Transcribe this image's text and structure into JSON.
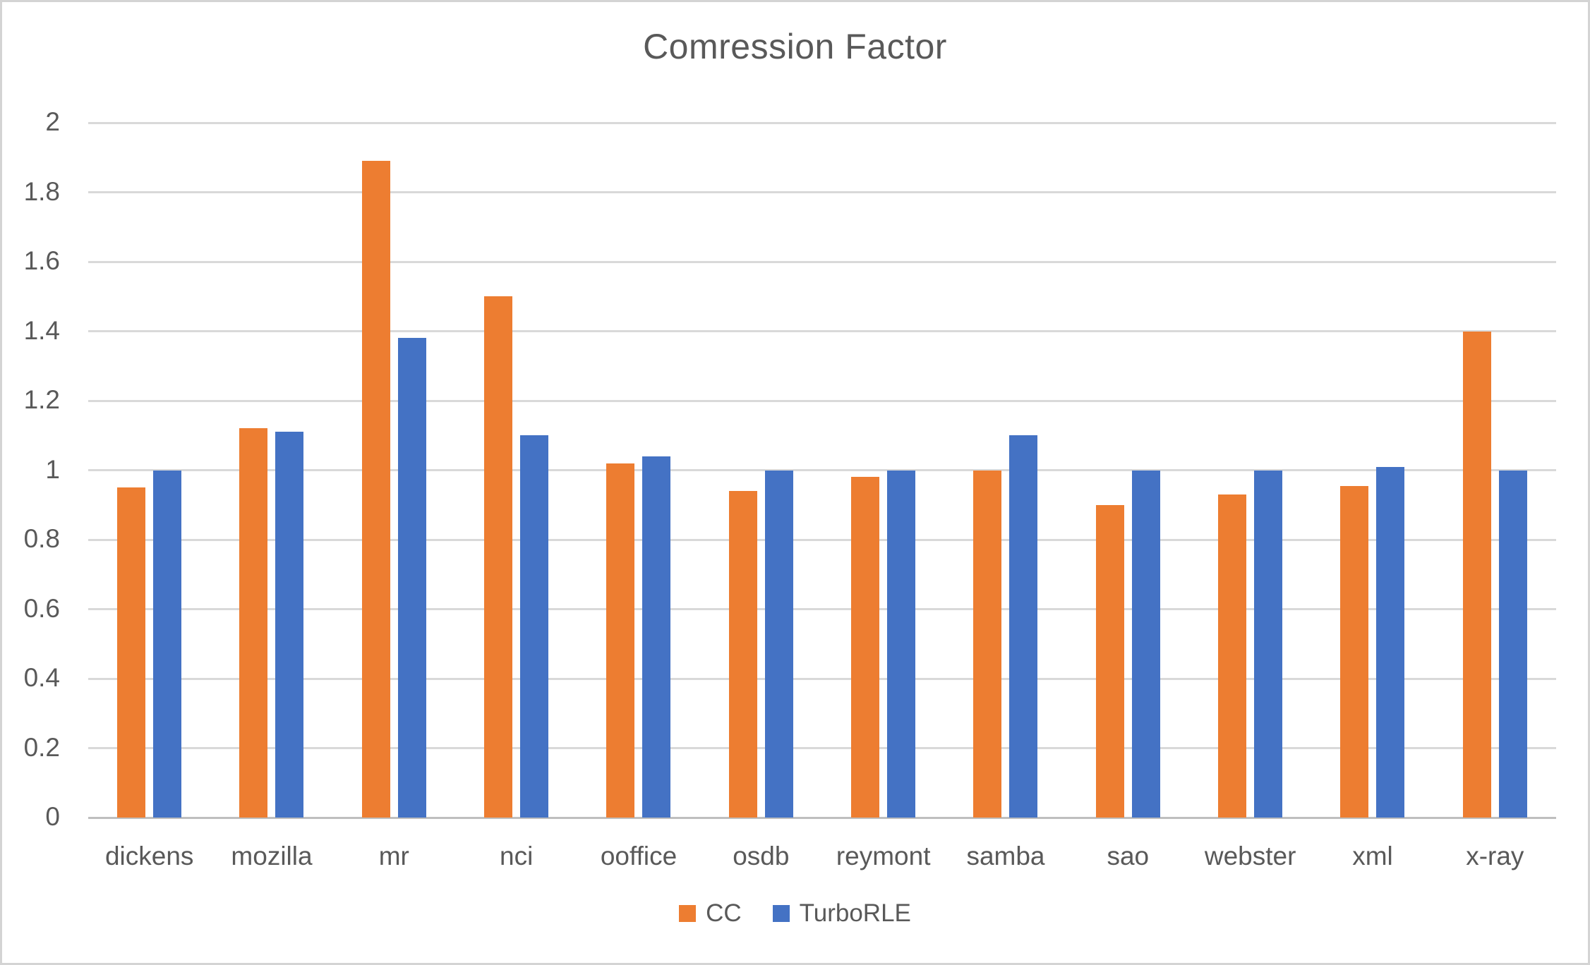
{
  "window": {
    "background": "#ffffff",
    "border_color": "#d4d4d4",
    "text_color": "#595959"
  },
  "chart_data": {
    "type": "bar",
    "title": "Comression Factor",
    "xlabel": "",
    "ylabel": "",
    "categories": [
      "dickens",
      "mozilla",
      "mr",
      "nci",
      "ooffice",
      "osdb",
      "reymont",
      "samba",
      "sao",
      "webster",
      "xml",
      "x-ray"
    ],
    "series": [
      {
        "name": "CC",
        "color": "#ED7D31",
        "values": [
          0.95,
          1.12,
          1.89,
          1.5,
          1.02,
          0.94,
          0.98,
          1.0,
          0.9,
          0.93,
          0.955,
          1.4
        ]
      },
      {
        "name": "TurboRLE",
        "color": "#4472C4",
        "values": [
          1.0,
          1.11,
          1.38,
          1.1,
          1.04,
          1.0,
          1.0,
          1.1,
          1.0,
          1.0,
          1.01,
          1.0
        ]
      }
    ],
    "ylim": [
      0,
      2
    ],
    "ytick_step": 0.2,
    "ytick_labels": [
      "0",
      "0.2",
      "0.4",
      "0.6",
      "0.8",
      "1",
      "1.2",
      "1.4",
      "1.6",
      "1.8",
      "2"
    ],
    "grid": true,
    "gridline_color": "#d9d9d9",
    "axis_line_color": "#bfbfbf",
    "legend_position": "bottom",
    "legend_labels": [
      "CC",
      "TurboRLE"
    ]
  }
}
